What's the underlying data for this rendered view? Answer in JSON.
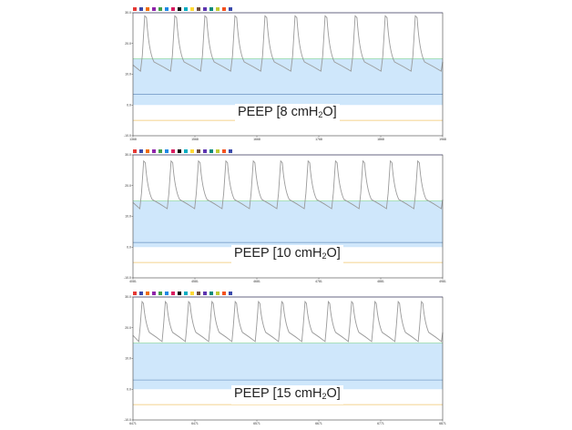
{
  "colors": {
    "pressure_line": "#9a9a9a",
    "band_fill": "#cfe7fb",
    "band_edge": "#8bd6a6",
    "top_line": "#7d7bd8",
    "mid_line": "#7a9fca",
    "bottom_line": "#f0c46a",
    "frame": "#444444"
  },
  "legend": [
    {
      "label": "",
      "color": "#e53935"
    },
    {
      "label": "",
      "color": "#3949ab"
    },
    {
      "label": "",
      "color": "#ef6c00"
    },
    {
      "label": "",
      "color": "#8e24aa"
    },
    {
      "label": "",
      "color": "#43a047"
    },
    {
      "label": "",
      "color": "#1e88e5"
    },
    {
      "label": "",
      "color": "#d81b60"
    },
    {
      "label": "",
      "color": "#000000"
    },
    {
      "label": "",
      "color": "#00acc1"
    },
    {
      "label": "",
      "color": "#fdd835"
    },
    {
      "label": "",
      "color": "#6d4c41"
    },
    {
      "label": "",
      "color": "#5e35b1"
    },
    {
      "label": "",
      "color": "#00897b"
    },
    {
      "label": "",
      "color": "#c0ca33"
    },
    {
      "label": "",
      "color": "#f4511e"
    },
    {
      "label": "",
      "color": "#3949ab"
    }
  ],
  "chart_data": [
    {
      "type": "line",
      "label_prefix": "PEEP [",
      "label_value": "8 cmH",
      "label_sub": "2",
      "label_suffix": "O]",
      "ylim": [
        -10,
        30
      ],
      "yticks": [
        "30.0",
        "20.0",
        "10.0",
        "0.0",
        "-10.0"
      ],
      "xticks": [
        "1368",
        "1568",
        "1668",
        "1768",
        "1868",
        "1968"
      ],
      "band": [
        0,
        15
      ],
      "top_line": 30,
      "mid_line": 3.5,
      "bottom_line": -5,
      "peak": 29,
      "trough": 11,
      "cycles": 10
    },
    {
      "type": "line",
      "label_prefix": "PEEP [",
      "label_value": "10 cmH",
      "label_sub": "2",
      "label_suffix": "O]",
      "ylim": [
        -10,
        30
      ],
      "yticks": [
        "30.0",
        "20.0",
        "10.0",
        "0.0",
        "-10.0"
      ],
      "xticks": [
        "4081",
        "4581",
        "4681",
        "4781",
        "4881",
        "4981"
      ],
      "band": [
        0,
        15
      ],
      "top_line": 30,
      "mid_line": 1.5,
      "bottom_line": -5,
      "peak": 28,
      "trough": 12.5,
      "cycles": 11
    },
    {
      "type": "line",
      "label_prefix": "PEEP [",
      "label_value": "15 cmH",
      "label_sub": "2",
      "label_suffix": "O]",
      "ylim": [
        -10,
        30
      ],
      "yticks": [
        "30.0",
        "20.0",
        "10.0",
        "0.0",
        "-10.0"
      ],
      "xticks": [
        "6471",
        "6471",
        "6571",
        "6671",
        "6771",
        "6871"
      ],
      "band": [
        0,
        15
      ],
      "top_line": 30,
      "mid_line": 3,
      "bottom_line": -5,
      "peak": 28.5,
      "trough": 15.5,
      "cycles": 13
    }
  ]
}
